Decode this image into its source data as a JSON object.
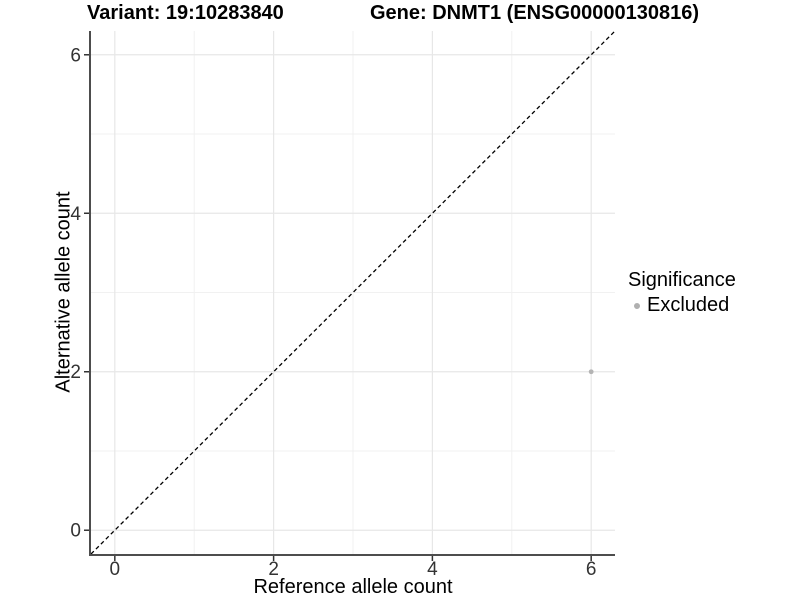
{
  "header": {
    "variant_title": "Variant: 19:10283840",
    "gene_title": "Gene: DNMT1 (ENSG00000130816)"
  },
  "chart_data": {
    "type": "scatter",
    "xlabel": "Reference allele count",
    "ylabel": "Alternative allele count",
    "xlim": [
      -0.3,
      6.3
    ],
    "ylim": [
      -0.3,
      6.3
    ],
    "x_major_ticks": [
      0,
      2,
      4,
      6
    ],
    "y_major_ticks": [
      0,
      2,
      4,
      6
    ],
    "x_minor_ticks": [
      1,
      3,
      5
    ],
    "y_minor_ticks": [
      1,
      3,
      5
    ],
    "grid": true,
    "identity_line": {
      "equation": "y = x",
      "style": "dashed",
      "color": "#000000"
    },
    "series": [
      {
        "name": "Excluded",
        "color": "#b4b4b4",
        "points": [
          {
            "x": 6,
            "y": 2
          }
        ]
      }
    ]
  },
  "legend": {
    "title": "Significance",
    "position": "right",
    "items": [
      {
        "label": "Excluded",
        "color": "#b0b0b0",
        "marker": "circle"
      }
    ]
  },
  "colors": {
    "background": "#ffffff",
    "grid_major": "#e7e7e7",
    "grid_minor": "#f1f1f1",
    "axis_line": "#4d4d4d",
    "tick_mark": "#333333",
    "tick_label": "#333333"
  }
}
